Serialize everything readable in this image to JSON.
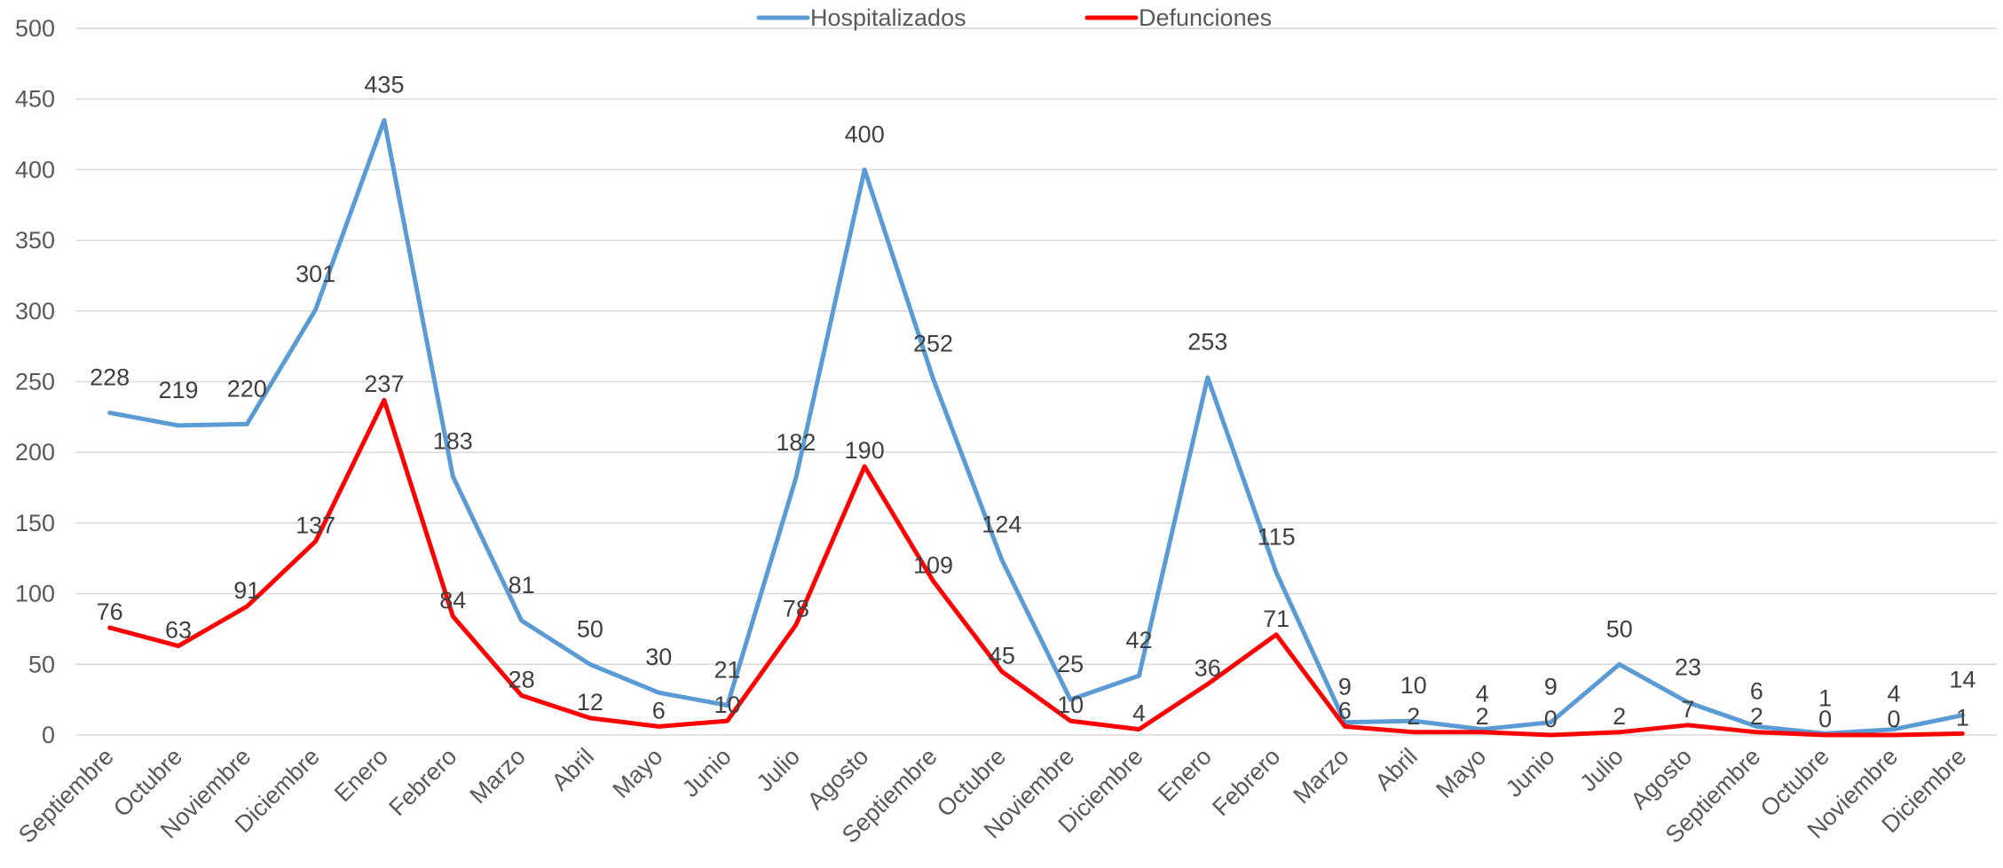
{
  "chart_data": {
    "type": "line",
    "title": "",
    "xlabel": "",
    "ylabel": "",
    "ylim": [
      0,
      500
    ],
    "yticks": [
      0,
      50,
      100,
      150,
      200,
      250,
      300,
      350,
      400,
      450,
      500
    ],
    "grid": true,
    "legend_position": "top-center",
    "categories": [
      "Septiembre",
      "Octubre",
      "Noviembre",
      "Diciembre",
      "Enero",
      "Febrero",
      "Marzo",
      "Abril",
      "Mayo",
      "Junio",
      "Julio",
      "Agosto",
      "Septiembre",
      "Octubre",
      "Noviembre",
      "Diciembre",
      "Enero",
      "Febrero",
      "Marzo",
      "Abril",
      "Mayo",
      "Junio",
      "Julio",
      "Agosto",
      "Septiembre",
      "Octubre",
      "Noviembre",
      "Diciembre"
    ],
    "series": [
      {
        "name": "Hospitalizados",
        "color": "#5b9bd5",
        "values": [
          228,
          219,
          220,
          301,
          435,
          183,
          81,
          50,
          30,
          21,
          182,
          400,
          252,
          124,
          25,
          42,
          253,
          115,
          9,
          10,
          4,
          9,
          50,
          23,
          6,
          1,
          4,
          14
        ]
      },
      {
        "name": "Defunciones",
        "color": "#ff0000",
        "values": [
          76,
          63,
          91,
          137,
          237,
          84,
          28,
          12,
          6,
          10,
          78,
          190,
          109,
          45,
          10,
          4,
          36,
          71,
          6,
          2,
          2,
          0,
          2,
          7,
          2,
          0,
          0,
          1
        ]
      }
    ]
  }
}
